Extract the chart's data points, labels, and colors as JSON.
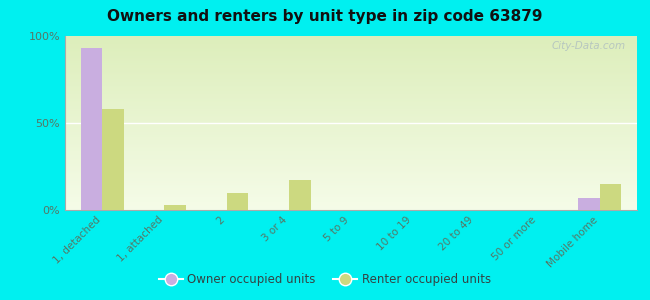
{
  "title": "Owners and renters by unit type in zip code 63879",
  "categories": [
    "1, detached",
    "1, attached",
    "2",
    "3 or 4",
    "5 to 9",
    "10 to 19",
    "20 to 49",
    "50 or more",
    "Mobile home"
  ],
  "owner_values": [
    93,
    0,
    0,
    0,
    0,
    0,
    0,
    0,
    7
  ],
  "renter_values": [
    58,
    3,
    10,
    17,
    0,
    0,
    0,
    0,
    15
  ],
  "owner_color": "#c9aee0",
  "renter_color": "#ccd980",
  "background_color": "#00f0f0",
  "plot_bg_color": "#eef5d8",
  "ylim": [
    0,
    100
  ],
  "yticks": [
    0,
    50,
    100
  ],
  "ytick_labels": [
    "0%",
    "50%",
    "100%"
  ],
  "legend_owner": "Owner occupied units",
  "legend_renter": "Renter occupied units",
  "bar_width": 0.35,
  "watermark": "City-Data.com",
  "tick_color": "#557766",
  "spine_color": "#aaaaaa",
  "grid_color": "#ffffff"
}
